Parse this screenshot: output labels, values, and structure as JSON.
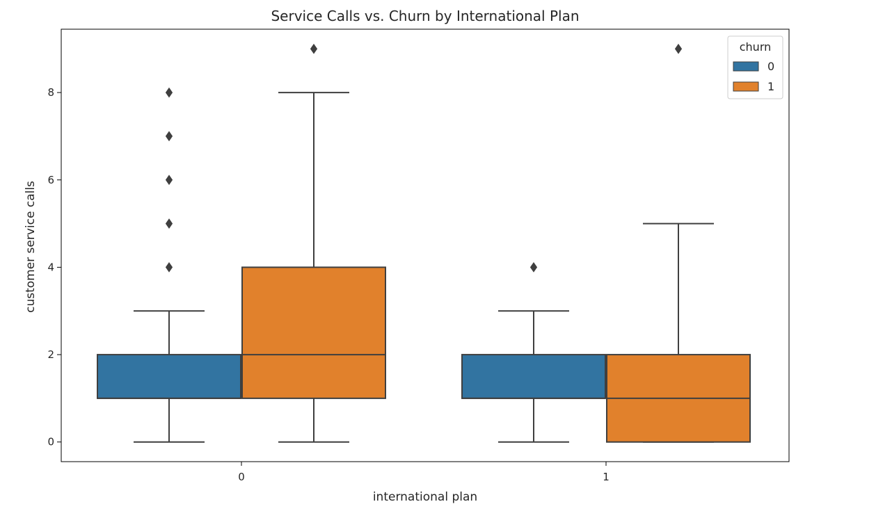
{
  "chart_data": {
    "type": "boxplot",
    "title": "Service Calls vs. Churn by International Plan",
    "xlabel": "international plan",
    "ylabel": "customer service calls",
    "categories": [
      "0",
      "1"
    ],
    "yticks": [
      0,
      2,
      4,
      6,
      8
    ],
    "ylim": [
      -0.45,
      9.45
    ],
    "legend": {
      "title": "churn",
      "placement": "upper-right",
      "entries": [
        "0",
        "1"
      ]
    },
    "series": [
      {
        "name": "0",
        "color": "#3274a1",
        "boxes": [
          {
            "category": "0",
            "whisker_low": 0,
            "q1": 1,
            "median": 1,
            "q3": 2,
            "whisker_high": 3,
            "outliers": [
              4,
              5,
              6,
              7,
              8
            ]
          },
          {
            "category": "1",
            "whisker_low": 0,
            "q1": 1,
            "median": 1,
            "q3": 2,
            "whisker_high": 3,
            "outliers": [
              4
            ]
          }
        ]
      },
      {
        "name": "1",
        "color": "#e1812c",
        "boxes": [
          {
            "category": "0",
            "whisker_low": 0,
            "q1": 1,
            "median": 2,
            "q3": 4,
            "whisker_high": 8,
            "outliers": [
              9
            ]
          },
          {
            "category": "1",
            "whisker_low": 0,
            "q1": 0,
            "median": 1,
            "q3": 2,
            "whisker_high": 5,
            "outliers": [
              9
            ]
          }
        ]
      }
    ],
    "line_color": "#3f3f3f",
    "grid": false
  }
}
